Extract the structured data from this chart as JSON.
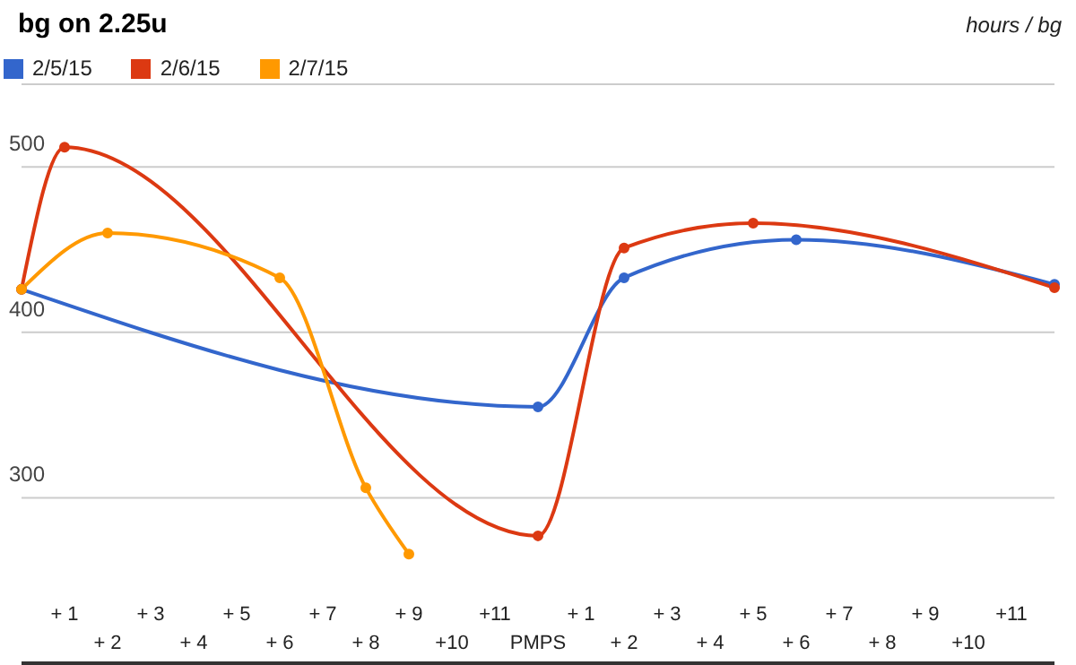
{
  "chart_data": {
    "type": "line",
    "title": "bg on 2.25u",
    "annotations": [
      "hours / bg"
    ],
    "categories": [
      null,
      "+ 1",
      "+ 2",
      "+ 3",
      "+ 4",
      "+ 5",
      "+ 6",
      "+ 7",
      "+ 8",
      "+ 9",
      "+10",
      "+11",
      "PMPS",
      "+ 1",
      "+ 2",
      "+ 3",
      "+ 4",
      "+ 5",
      "+ 6",
      "+ 7",
      "+ 8",
      "+ 9",
      "+10",
      "+11",
      null
    ],
    "series": [
      {
        "name": "2/5/15",
        "color": "#3366cc",
        "values": [
          426,
          null,
          null,
          null,
          null,
          null,
          null,
          null,
          null,
          null,
          null,
          null,
          355,
          null,
          433,
          null,
          null,
          null,
          456,
          null,
          null,
          null,
          null,
          null,
          429
        ]
      },
      {
        "name": "2/6/15",
        "color": "#dc3912",
        "values": [
          426,
          512,
          null,
          null,
          null,
          null,
          null,
          null,
          null,
          null,
          null,
          null,
          277,
          null,
          451,
          null,
          null,
          466,
          null,
          null,
          null,
          null,
          null,
          null,
          427
        ]
      },
      {
        "name": "2/7/15",
        "color": "#ff9900",
        "values": [
          426,
          null,
          460,
          null,
          null,
          null,
          433,
          null,
          306,
          266,
          null,
          null,
          null,
          null,
          null,
          null,
          null,
          null,
          null,
          null,
          null,
          null,
          null,
          null,
          null
        ]
      }
    ],
    "ylim": [
      200,
      550
    ],
    "yticks": [
      300,
      400,
      500
    ],
    "grid": "y",
    "legend": "top left",
    "marker": "circle",
    "line_style": "solid"
  }
}
